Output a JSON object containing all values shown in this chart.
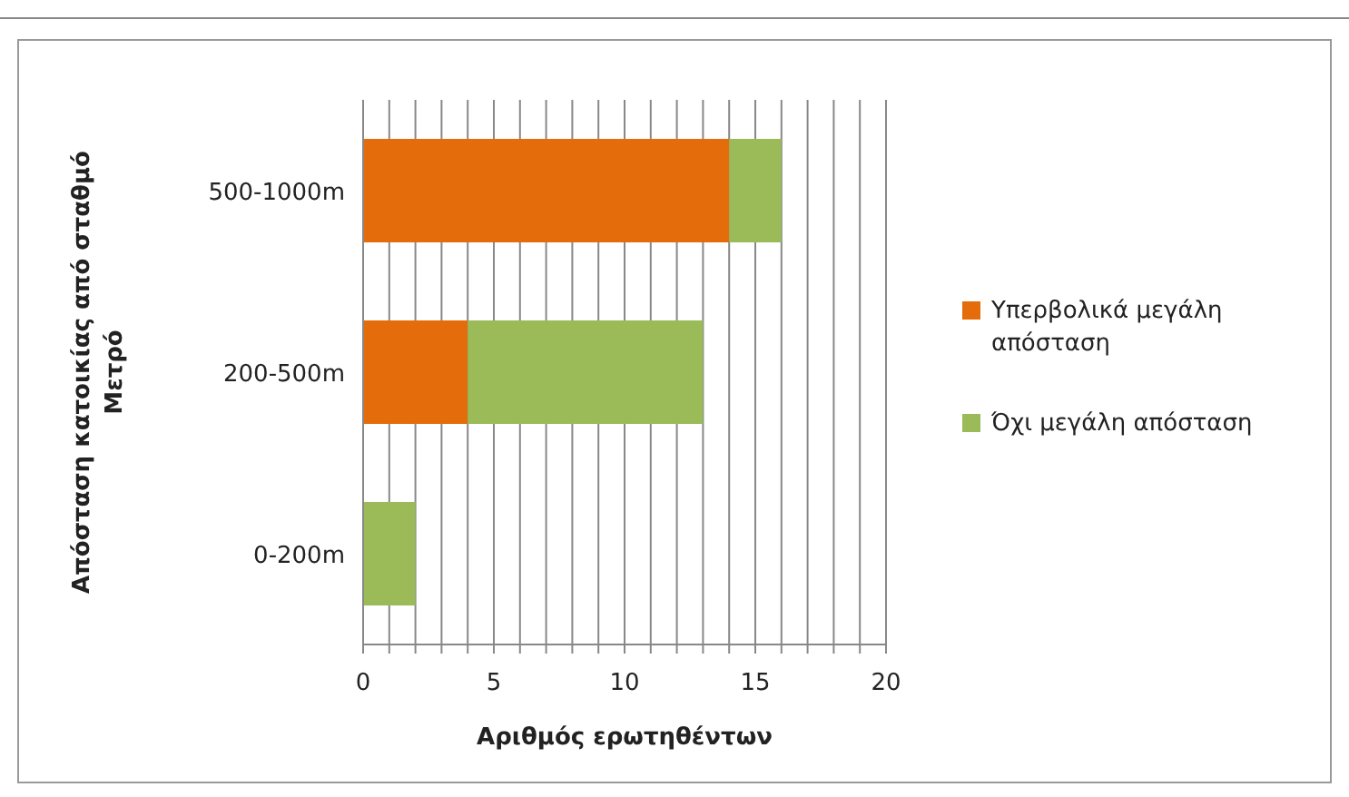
{
  "chart_data": {
    "type": "bar",
    "orientation": "horizontal",
    "stacked": true,
    "xlabel": "Αριθμός ερωτηθέντων",
    "ylabel": "Απόσταση κατοικίας από σταθμό Μετρό",
    "categories": [
      "500-1000m",
      "200-500m",
      "0-200m"
    ],
    "series": [
      {
        "name": "Υπερβολικά μεγάλη απόσταση",
        "color": "#e46c0a",
        "values": [
          14,
          4,
          0
        ]
      },
      {
        "name": "Όχι μεγάλη απόσταση",
        "color": "#9bbb59",
        "values": [
          2,
          9,
          2
        ]
      }
    ],
    "xlim": [
      0,
      20
    ],
    "xticks": [
      0,
      {
        "value": 1,
        "label": null
      },
      {
        "value": 2,
        "label": null
      },
      {
        "value": 3,
        "label": null
      },
      {
        "value": 4,
        "label": null
      },
      5,
      {
        "value": 6,
        "label": null
      },
      {
        "value": 7,
        "label": null
      },
      {
        "value": 8,
        "label": null
      },
      {
        "value": 9,
        "label": null
      },
      10,
      {
        "value": 11,
        "label": null
      },
      {
        "value": 12,
        "label": null
      },
      {
        "value": 13,
        "label": null
      },
      {
        "value": 14,
        "label": null
      },
      15,
      {
        "value": 16,
        "label": null
      },
      {
        "value": 17,
        "label": null
      },
      {
        "value": 18,
        "label": null
      },
      {
        "value": 19,
        "label": null
      },
      20
    ],
    "grid": "x",
    "legend": "right"
  }
}
